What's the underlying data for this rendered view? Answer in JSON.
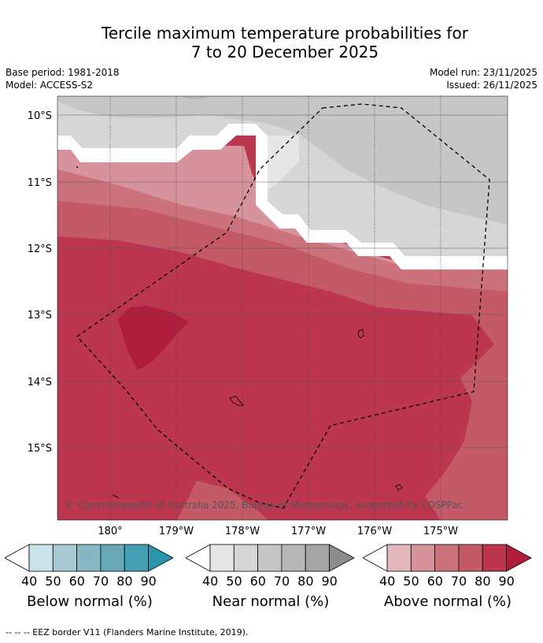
{
  "title": {
    "line1": "Tercile maximum temperature probabilities for",
    "line2": "7 to 20 December 2025"
  },
  "meta": {
    "base_period": "Base period: 1981-2018",
    "model": "Model: ACCESS-S2",
    "model_run": "Model run: 23/11/2025",
    "issued": "Issued: 26/11/2025"
  },
  "map": {
    "lat_labels": [
      "10°S",
      "11°S",
      "12°S",
      "13°S",
      "14°S",
      "15°S"
    ],
    "lon_labels": [
      "180°",
      "179°W",
      "178°W",
      "177°W",
      "176°W",
      "175°W"
    ],
    "copyright": "© Commonwealth of Australia 2025, Bureau of Meteorology, supported by COSPPac"
  },
  "legends": [
    {
      "title": "Below normal (%)",
      "ticks": [
        "40",
        "50",
        "60",
        "70",
        "80",
        "90"
      ],
      "colors": [
        "#ffffff",
        "#cae3ea",
        "#a7c9d1",
        "#86b7c5",
        "#67a9b9",
        "#449eb1",
        "#2a93ad"
      ]
    },
    {
      "title": "Near normal (%)",
      "ticks": [
        "40",
        "50",
        "60",
        "70",
        "80",
        "90"
      ],
      "colors": [
        "#ffffff",
        "#e6e6e6",
        "#d6d6d6",
        "#c6c6c6",
        "#b7b7b7",
        "#a5a5a5",
        "#8c8c8c"
      ]
    },
    {
      "title": "Above normal (%)",
      "ticks": [
        "40",
        "50",
        "60",
        "70",
        "80",
        "90"
      ],
      "colors": [
        "#ffffff",
        "#e2b7bd",
        "#d6939c",
        "#cc727d",
        "#c45a66",
        "#bd3650",
        "#b01e3e"
      ]
    }
  ],
  "footnote": "--  --  -- EEZ border V11 (Flanders Marine Institute, 2019)."
}
